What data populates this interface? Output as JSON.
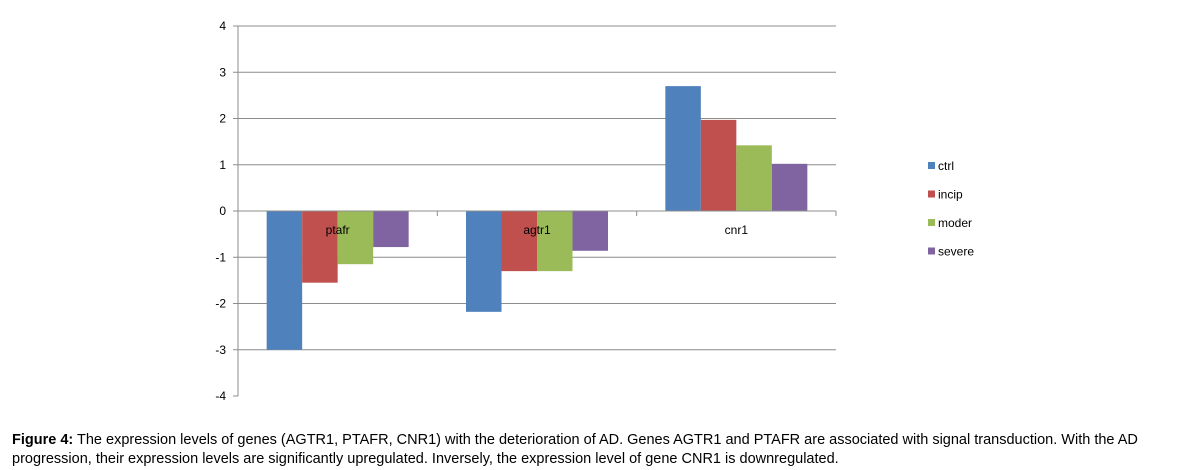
{
  "chart_data": {
    "type": "bar",
    "categories": [
      "ptafr",
      "agtr1",
      "cnr1"
    ],
    "series": [
      {
        "name": "ctrl",
        "color": "#4F81BD",
        "values": [
          -3.0,
          -2.18,
          2.7
        ]
      },
      {
        "name": "incip",
        "color": "#C0504D",
        "values": [
          -1.55,
          -1.3,
          1.97
        ]
      },
      {
        "name": "moder",
        "color": "#9BBB59",
        "values": [
          -1.15,
          -1.3,
          1.42
        ]
      },
      {
        "name": "severe",
        "color": "#8064A2",
        "values": [
          -0.78,
          -0.86,
          1.02
        ]
      }
    ],
    "ylim": [
      -4,
      4
    ],
    "yticks": [
      -4,
      -3,
      -2,
      -1,
      0,
      1,
      2,
      3,
      4
    ],
    "grid": true,
    "legend": "right",
    "title": "",
    "xlabel": "",
    "ylabel": ""
  },
  "caption": {
    "prefix": "Figure 4:",
    "text": " The expression levels of genes (AGTR1, PTAFR, CNR1) with the deterioration of AD. Genes AGTR1 and PTAFR are associated with signal transduction. With the AD progression, their expression levels are significantly upregulated. Inversely, the expression level of gene CNR1 is downregulated."
  }
}
